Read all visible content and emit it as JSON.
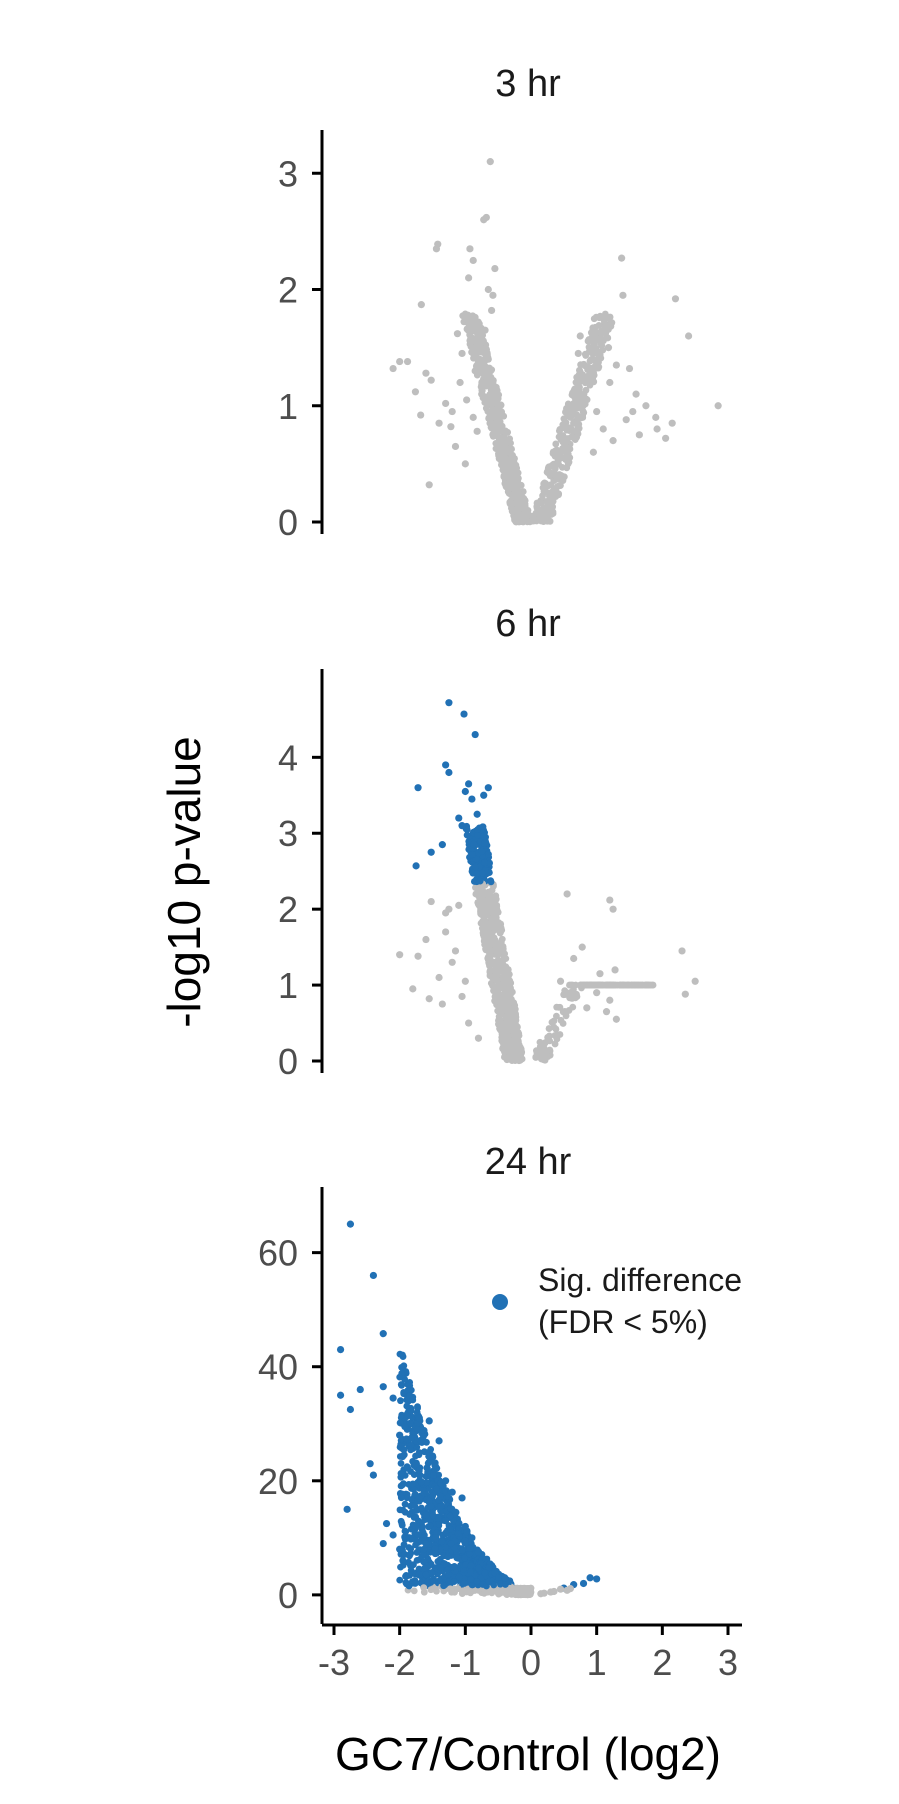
{
  "chart_data": {
    "type": "scatter",
    "ylabel": "-log10 p-value",
    "xlabel": "GC7/Control (log2)",
    "xlim": [
      -3,
      3
    ],
    "x_ticks": [
      {
        "value": -3,
        "label": "-3"
      },
      {
        "value": -2,
        "label": "-2"
      },
      {
        "value": -1,
        "label": "-1"
      },
      {
        "value": 0,
        "label": "0"
      },
      {
        "value": 1,
        "label": "1"
      },
      {
        "value": 2,
        "label": "2"
      },
      {
        "value": 3,
        "label": "3"
      }
    ],
    "colors": {
      "not_significant": "#bebebe",
      "significant": "#2171b5",
      "axis": "#000000"
    },
    "legend": {
      "position": "top-right of bottom panel",
      "entries": [
        {
          "series": "significant",
          "label_lines": [
            "Sig. difference",
            "(FDR < 5%)"
          ]
        }
      ]
    },
    "panels": [
      {
        "title": "3 hr",
        "ylim": [
          0,
          3.2
        ],
        "y_ticks": [
          {
            "value": 0,
            "label": "0"
          },
          {
            "value": 1,
            "label": "1"
          },
          {
            "value": 2,
            "label": "2"
          },
          {
            "value": 3,
            "label": "3"
          }
        ],
        "series": [
          {
            "key": "not_significant",
            "points": [
              [
                -0.62,
                3.1
              ],
              [
                -0.68,
                2.62
              ],
              [
                -0.72,
                2.6
              ],
              [
                -1.42,
                2.39
              ],
              [
                -1.44,
                2.35
              ],
              [
                -0.93,
                2.35
              ],
              [
                -0.88,
                2.25
              ],
              [
                -0.55,
                2.18
              ],
              [
                -0.95,
                2.1
              ],
              [
                -0.65,
                2.0
              ],
              [
                -1.67,
                1.87
              ],
              [
                -2.0,
                1.38
              ],
              [
                -1.88,
                1.38
              ],
              [
                -2.1,
                1.32
              ],
              [
                -1.6,
                1.28
              ],
              [
                -1.52,
                1.22
              ],
              [
                -1.76,
                1.12
              ],
              [
                -1.68,
                0.92
              ],
              [
                -1.4,
                0.85
              ],
              [
                -1.22,
                0.82
              ],
              [
                -1.3,
                1.02
              ],
              [
                -1.05,
                1.45
              ],
              [
                -1.12,
                1.62
              ],
              [
                -0.9,
                1.7
              ],
              [
                -1.55,
                0.32
              ],
              [
                -1.0,
                0.5
              ],
              [
                -1.08,
                1.2
              ],
              [
                -1.2,
                0.95
              ],
              [
                -0.98,
                1.05
              ],
              [
                -1.15,
                0.65
              ],
              [
                -0.85,
                1.3
              ],
              [
                -0.7,
                1.65
              ],
              [
                -0.78,
                1.5
              ],
              [
                -0.6,
                1.82
              ],
              [
                -0.58,
                1.95
              ],
              [
                -0.75,
                1.1
              ],
              [
                -0.82,
                0.78
              ],
              [
                -0.88,
                0.9
              ],
              [
                1.38,
                2.27
              ],
              [
                1.4,
                1.95
              ],
              [
                2.2,
                1.92
              ],
              [
                2.4,
                1.6
              ],
              [
                2.85,
                1.0
              ],
              [
                1.05,
                1.63
              ],
              [
                1.18,
                1.5
              ],
              [
                0.75,
                1.6
              ],
              [
                0.72,
                1.45
              ],
              [
                1.3,
                1.35
              ],
              [
                1.5,
                1.32
              ],
              [
                1.2,
                1.2
              ],
              [
                1.6,
                1.1
              ],
              [
                1.75,
                1.0
              ],
              [
                1.92,
                0.8
              ],
              [
                1.45,
                0.88
              ],
              [
                1.0,
                0.95
              ],
              [
                0.8,
                1.05
              ],
              [
                0.65,
                0.85
              ],
              [
                1.9,
                0.9
              ],
              [
                2.05,
                0.72
              ],
              [
                1.65,
                0.75
              ],
              [
                1.25,
                0.7
              ],
              [
                0.95,
                0.6
              ],
              [
                1.1,
                0.8
              ],
              [
                1.55,
                0.95
              ],
              [
                2.15,
                0.85
              ]
            ]
          }
        ]
      },
      {
        "title": "6 hr",
        "ylim": [
          0,
          4.9
        ],
        "y_ticks": [
          {
            "value": 0,
            "label": "0"
          },
          {
            "value": 1,
            "label": "1"
          },
          {
            "value": 2,
            "label": "2"
          },
          {
            "value": 3,
            "label": "3"
          },
          {
            "value": 4,
            "label": "4"
          }
        ],
        "series": [
          {
            "key": "significant",
            "points": [
              [
                -1.25,
                4.72
              ],
              [
                -1.02,
                4.57
              ],
              [
                -0.85,
                4.3
              ],
              [
                -1.3,
                3.9
              ],
              [
                -1.25,
                3.8
              ],
              [
                -1.72,
                3.6
              ],
              [
                -0.82,
                3.25
              ],
              [
                -1.75,
                2.57
              ],
              [
                -1.52,
                2.75
              ],
              [
                -1.35,
                2.85
              ],
              [
                -1.0,
                3.55
              ],
              [
                -0.9,
                3.45
              ],
              [
                -0.95,
                3.65
              ],
              [
                -0.65,
                3.6
              ],
              [
                -0.72,
                3.5
              ],
              [
                -1.1,
                3.2
              ],
              [
                -1.05,
                3.1
              ]
            ]
          },
          {
            "key": "not_significant",
            "points": [
              [
                -1.52,
                2.1
              ],
              [
                -1.72,
                1.38
              ],
              [
                -2.0,
                1.4
              ],
              [
                -1.8,
                0.95
              ],
              [
                -1.55,
                0.82
              ],
              [
                -1.4,
                1.1
              ],
              [
                -1.3,
                1.7
              ],
              [
                -1.6,
                1.6
              ],
              [
                -1.2,
                1.3
              ],
              [
                -1.25,
                2.0
              ],
              [
                -1.1,
                2.05
              ],
              [
                -1.0,
                1.05
              ],
              [
                -1.15,
                1.45
              ],
              [
                -1.3,
                1.95
              ],
              [
                -0.95,
                0.5
              ],
              [
                -0.8,
                0.3
              ],
              [
                -1.05,
                0.85
              ],
              [
                -1.35,
                0.75
              ],
              [
                0.55,
                2.2
              ],
              [
                1.2,
                2.12
              ],
              [
                1.25,
                2.0
              ],
              [
                0.78,
                1.5
              ],
              [
                0.65,
                1.35
              ],
              [
                1.28,
                1.2
              ],
              [
                2.3,
                1.45
              ],
              [
                2.5,
                1.05
              ],
              [
                2.35,
                0.88
              ],
              [
                1.2,
                0.8
              ],
              [
                1.05,
                1.15
              ],
              [
                0.45,
                1.05
              ],
              [
                1.0,
                0.9
              ],
              [
                1.15,
                0.65
              ],
              [
                1.3,
                0.55
              ],
              [
                0.85,
                0.7
              ],
              [
                0.6,
                0.9
              ]
            ]
          }
        ]
      },
      {
        "title": "24 hr",
        "ylim": [
          -3,
          68
        ],
        "y_ticks": [
          {
            "value": 0,
            "label": "0"
          },
          {
            "value": 20,
            "label": "20"
          },
          {
            "value": 40,
            "label": "40"
          },
          {
            "value": 60,
            "label": "60"
          }
        ],
        "series": [
          {
            "key": "significant",
            "points": [
              [
                -2.75,
                65.0
              ],
              [
                -2.4,
                56.0
              ],
              [
                -2.25,
                45.8
              ],
              [
                -2.9,
                43.0
              ],
              [
                -2.6,
                36.0
              ],
              [
                -2.9,
                35.0
              ],
              [
                -2.75,
                32.5
              ],
              [
                -2.25,
                36.5
              ],
              [
                -2.1,
                34.5
              ],
              [
                -2.8,
                15.0
              ],
              [
                -2.4,
                21.0
              ],
              [
                -2.45,
                23.0
              ],
              [
                -2.0,
                28.0
              ],
              [
                -1.92,
                29.5
              ],
              [
                -1.82,
                27.5
              ],
              [
                -1.7,
                31.0
              ],
              [
                -1.55,
                30.5
              ],
              [
                -1.4,
                27.0
              ],
              [
                -1.55,
                25.0
              ],
              [
                -1.75,
                23.0
              ],
              [
                -1.3,
                20.0
              ],
              [
                -1.2,
                18.0
              ],
              [
                -1.05,
                17.0
              ],
              [
                -1.0,
                12.0
              ],
              [
                -1.75,
                12.0
              ],
              [
                -2.0,
                8.0
              ],
              [
                -2.2,
                12.5
              ],
              [
                -2.1,
                10.5
              ],
              [
                -1.95,
                6.0
              ],
              [
                -2.25,
                9.0
              ],
              [
                -1.45,
                10.0
              ],
              [
                -1.6,
                14.0
              ],
              [
                -1.7,
                17.0
              ],
              [
                -1.3,
                13.0
              ],
              [
                -1.15,
                14.5
              ],
              [
                -0.9,
                10.0
              ],
              [
                -0.8,
                7.5
              ],
              [
                -1.6,
                9.0
              ],
              [
                -1.85,
                10.0
              ],
              [
                0.5,
                1.2
              ],
              [
                0.65,
                1.8
              ],
              [
                0.9,
                3.0
              ],
              [
                0.8,
                2.0
              ],
              [
                1.0,
                2.8
              ],
              [
                -0.4,
                3.0
              ]
            ]
          },
          {
            "key": "not_significant",
            "points": [
              [
                0.3,
                0.5
              ],
              [
                0.45,
                1.0
              ],
              [
                0.55,
                0.8
              ],
              [
                0.2,
                0.3
              ],
              [
                0.15,
                0.2
              ],
              [
                -0.2,
                0.4
              ],
              [
                0.6,
                1.1
              ],
              [
                0.35,
                0.6
              ]
            ]
          }
        ]
      }
    ]
  }
}
